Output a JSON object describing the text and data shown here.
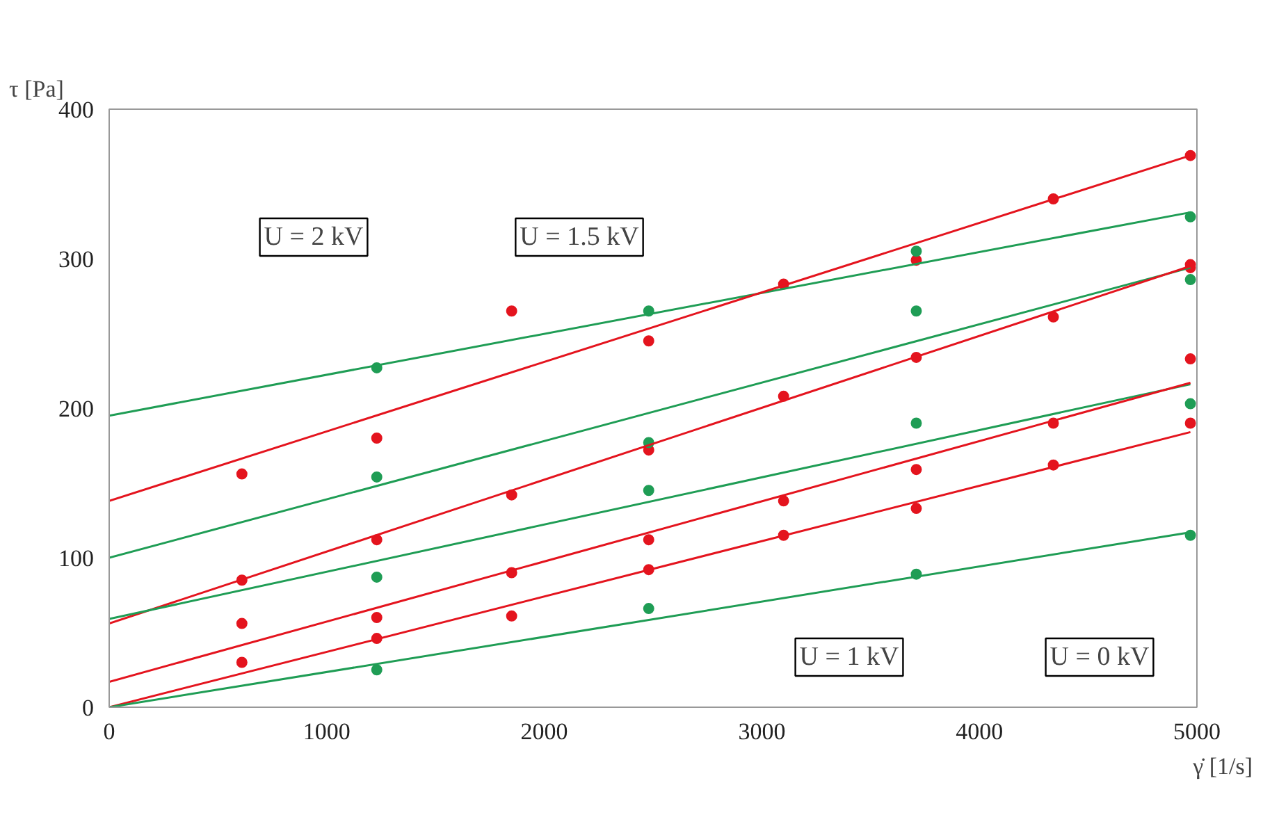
{
  "chart_data": {
    "type": "scatter",
    "xlabel": "γ̇ [1/s]",
    "ylabel": "τ [Pa]",
    "xlim": [
      0,
      5000
    ],
    "ylim": [
      0,
      400
    ],
    "xticks": [
      0,
      1000,
      2000,
      3000,
      4000,
      5000
    ],
    "yticks": [
      0,
      100,
      200,
      300,
      400
    ],
    "grid": false,
    "series": [
      {
        "marker": "circle",
        "color": "#e4141e",
        "x": [
          610,
          610,
          610,
          610,
          1230,
          1230,
          1230,
          1230,
          1850,
          1850,
          1850,
          1850,
          2480,
          2480,
          2480,
          2480,
          3100,
          3100,
          3100,
          3100,
          3710,
          3710,
          3710,
          3710,
          4340,
          4340,
          4340,
          4340,
          4970,
          4970,
          4970,
          4970,
          4970
        ],
        "values": [
          156,
          85,
          56,
          30,
          180,
          112,
          60,
          46,
          265,
          142,
          90,
          61,
          245,
          172,
          112,
          92,
          283,
          208,
          138,
          115,
          299,
          234,
          159,
          133,
          340,
          261,
          190,
          162,
          369,
          296,
          294,
          233,
          190
        ]
      },
      {
        "marker": "circle",
        "color": "#1f9d55",
        "x": [
          1230,
          1230,
          1230,
          1230,
          2480,
          2480,
          2480,
          2480,
          3710,
          3710,
          3710,
          3710,
          4970,
          4970,
          4970,
          4970
        ],
        "values": [
          227,
          154,
          87,
          25,
          265,
          177,
          145,
          66,
          305,
          265,
          190,
          89,
          328,
          286,
          203,
          115
        ]
      },
      {
        "type": "line",
        "color": "#1f9d55",
        "x": [
          0,
          4970
        ],
        "values": [
          195,
          331
        ]
      },
      {
        "type": "line",
        "color": "#e4141e",
        "x": [
          0,
          4970
        ],
        "values": [
          138,
          369
        ]
      },
      {
        "type": "line",
        "color": "#1f9d55",
        "x": [
          0,
          4970
        ],
        "values": [
          100,
          294
        ]
      },
      {
        "type": "line",
        "color": "#e4141e",
        "x": [
          0,
          4970
        ],
        "values": [
          56,
          295
        ]
      },
      {
        "type": "line",
        "color": "#1f9d55",
        "x": [
          0,
          4970
        ],
        "values": [
          59,
          216
        ]
      },
      {
        "type": "line",
        "color": "#e4141e",
        "x": [
          0,
          4970
        ],
        "values": [
          17,
          217
        ]
      },
      {
        "type": "line",
        "color": "#e4141e",
        "x": [
          0,
          4970
        ],
        "values": [
          0,
          184
        ]
      },
      {
        "type": "line",
        "color": "#1f9d55",
        "x": [
          0,
          4970
        ],
        "values": [
          0,
          117
        ]
      }
    ],
    "annotations": [
      "U = 2 kV",
      "U = 1.5 kV",
      "U = 1 kV",
      "U = 0 kV"
    ]
  }
}
